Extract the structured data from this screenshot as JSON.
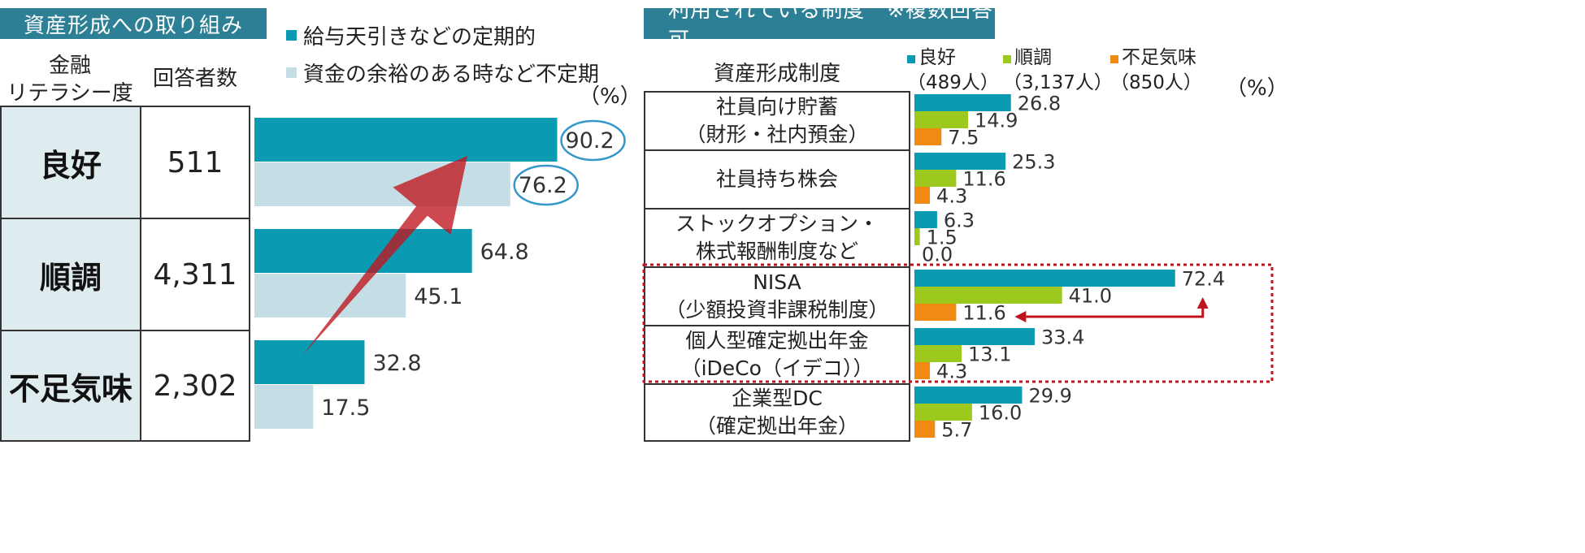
{
  "left": {
    "header": "資産形成への取り組み",
    "col_literacy_line1": "金融",
    "col_literacy_line2": "リテラシー度",
    "col_respondents": "回答者数",
    "rows": [
      {
        "level": "良好",
        "count": "511"
      },
      {
        "level": "順調",
        "count": "4,311"
      },
      {
        "level": "不足気味",
        "count": "2,302"
      }
    ],
    "legend": [
      "給与天引きなどの定期的",
      "資金の余裕のある時など不定期"
    ],
    "unit": "（%）"
  },
  "right": {
    "header": "利用されている制度　※複数回答可",
    "col_system": "資産形成制度",
    "legend": [
      {
        "name": "良好",
        "n": "（489人）"
      },
      {
        "name": "順調",
        "n": "（3,137人）"
      },
      {
        "name": "不足気味",
        "n": "（850人）"
      }
    ],
    "unit": "（%）",
    "rows": [
      {
        "line1": "社員向け貯蓄",
        "line2": "（財形・社内預金）"
      },
      {
        "line1": "社員持ち株会",
        "line2": ""
      },
      {
        "line1": "ストックオプション・",
        "line2": "株式報酬制度など"
      },
      {
        "line1": "NISA",
        "line2": "（少額投資非課税制度）"
      },
      {
        "line1": "個人型確定拠出年金",
        "line2": "（iDeCo（イデコ））"
      },
      {
        "line1": "企業型DC",
        "line2": "（確定拠出年金）"
      }
    ]
  },
  "colors": {
    "header": "#2d7f95",
    "teal": "#0a9bb2",
    "lightblue": "#c5dde4",
    "green": "#9dc81d",
    "orange": "#f08a12",
    "red": "#c0141d",
    "circle": "#3596c9"
  },
  "chart_data": [
    {
      "type": "bar",
      "orientation": "horizontal",
      "categories": [
        "良好",
        "順調",
        "不足気味"
      ],
      "series": [
        {
          "name": "給与天引きなどの定期的",
          "values": [
            90.2,
            64.8,
            32.8
          ]
        },
        {
          "name": "資金の余裕のある時など不定期",
          "values": [
            76.2,
            45.1,
            17.5
          ]
        }
      ],
      "xlim": [
        0,
        100
      ]
    },
    {
      "type": "bar",
      "orientation": "horizontal",
      "categories": [
        "社員向け貯蓄（財形・社内預金）",
        "社員持ち株会",
        "ストックオプション・株式報酬制度など",
        "NISA（少額投資非課税制度）",
        "個人型確定拠出年金（iDeCo（イデコ））",
        "企業型DC（確定拠出年金）"
      ],
      "series": [
        {
          "name": "良好",
          "values": [
            26.8,
            25.3,
            6.3,
            72.4,
            33.4,
            29.9
          ]
        },
        {
          "name": "順調",
          "values": [
            14.9,
            11.6,
            1.5,
            41.0,
            13.1,
            16.0
          ]
        },
        {
          "name": "不足気味",
          "values": [
            7.5,
            4.3,
            0.0,
            11.6,
            4.3,
            5.7
          ]
        }
      ],
      "xlim": [
        0,
        100
      ]
    }
  ]
}
